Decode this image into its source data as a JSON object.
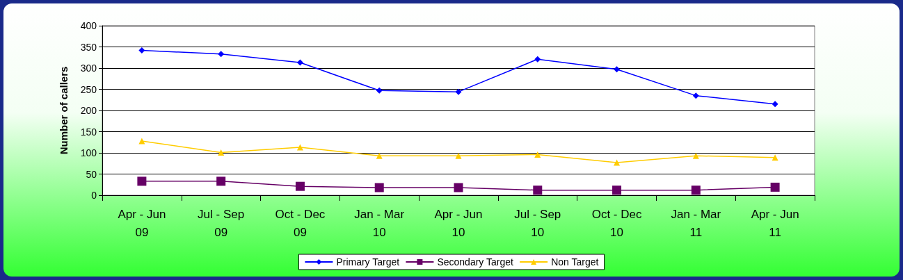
{
  "chart_data": {
    "type": "line",
    "ylabel": "Number of callers",
    "categories": [
      "Apr - Jun 09",
      "Jul - Sep 09",
      "Oct - Dec 09",
      "Jan - Mar 10",
      "Apr - Jun 10",
      "Jul - Sep 10",
      "Oct - Dec 10",
      "Jan - Mar 11",
      "Apr - Jun 11"
    ],
    "series": [
      {
        "name": "Primary Target",
        "color": "#0000ff",
        "marker": "diamond",
        "values": [
          342,
          333,
          313,
          247,
          244,
          321,
          297,
          235,
          215
        ]
      },
      {
        "name": "Secondary Target",
        "color": "#660066",
        "marker": "square",
        "values": [
          33,
          33,
          21,
          18,
          18,
          12,
          12,
          12,
          19
        ]
      },
      {
        "name": "Non Target",
        "color": "#ffcc00",
        "marker": "triangle",
        "values": [
          128,
          101,
          113,
          93,
          93,
          96,
          77,
          93,
          89
        ]
      }
    ],
    "ylim": [
      0,
      400
    ],
    "yticks": [
      0,
      50,
      100,
      150,
      200,
      250,
      300,
      350,
      400
    ],
    "grid": "y",
    "legend": "bottom"
  }
}
